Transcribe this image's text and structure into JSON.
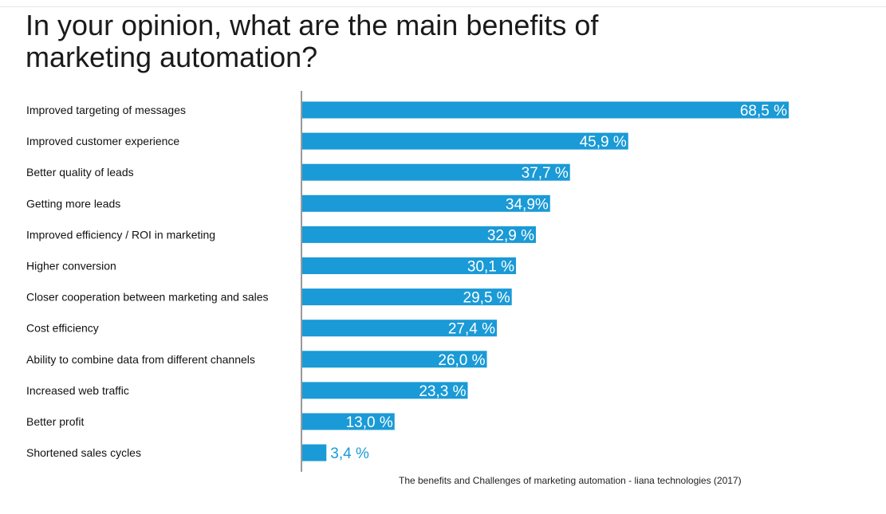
{
  "page": {
    "title_line1": "In your opinion, what are the main benefits of",
    "title_line2": "marketing automation?",
    "source": "The benefits and Challenges of marketing automation - liana technologies (2017)"
  },
  "colors": {
    "bar": "#1a9ad6",
    "label_inside": "#ffffff",
    "label_outside": "#1a9ad6",
    "axis": "#333333"
  },
  "chart_data": {
    "type": "bar",
    "orientation": "horizontal",
    "title": "In your opinion, what are the main benefits of marketing automation?",
    "categories": [
      "Improved targeting of messages",
      "Improved customer experience",
      "Better quality of leads",
      "Getting more leads",
      "Improved efficiency / ROI in marketing",
      "Higher conversion",
      "Closer cooperation between marketing and sales",
      "Cost efficiency",
      "Ability to combine data from different channels",
      "Increased web traffic",
      "Better profit",
      "Shortened sales cycles"
    ],
    "values": [
      68.5,
      45.9,
      37.7,
      34.9,
      32.9,
      30.1,
      29.5,
      27.4,
      26.0,
      23.3,
      13.0,
      3.4
    ],
    "data_labels": [
      "68,5 %",
      "45,9 %",
      "37,7 %",
      "34,9%",
      "32,9 %",
      "30,1 %",
      "29,5 %",
      "27,4 %",
      "26,0 %",
      "23,3 %",
      "13,0 %",
      "3,4 %"
    ],
    "xlim": [
      0,
      68.5
    ],
    "grid": false,
    "legend": "none"
  }
}
